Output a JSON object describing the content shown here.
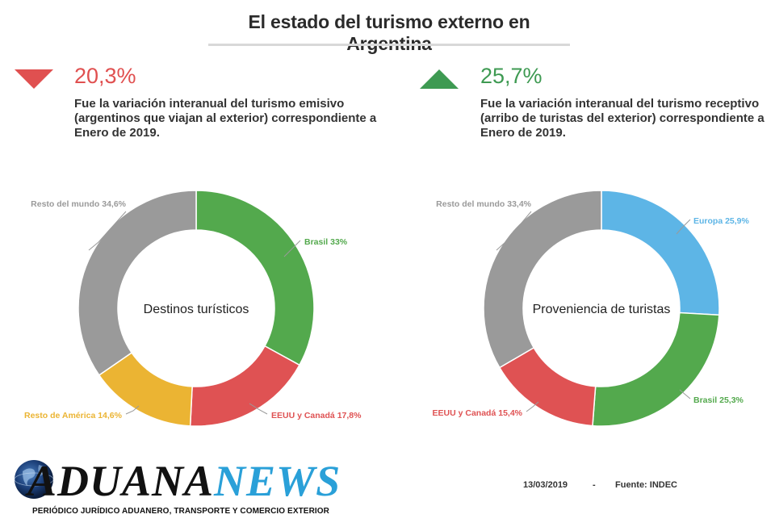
{
  "header": {
    "title": "El estado del turismo externo en Argentina"
  },
  "stats": [
    {
      "value": "20,3%",
      "direction": "down",
      "color": "#e05050",
      "description_lines": [
        "Fue la variación interanual del turismo emisivo",
        "(argentinos que viajan al exterior) correspondiente a",
        "Enero de 2019."
      ]
    },
    {
      "value": "25,7%",
      "direction": "up",
      "color": "#3e9a52",
      "description_lines": [
        "Fue la variación interanual del turismo receptivo",
        "(arribo de turistas del exterior) correspondiente a",
        "Enero de 2019."
      ]
    }
  ],
  "chart_data": [
    {
      "type": "pie",
      "title": "Destinos turísticos",
      "slices": [
        {
          "label": "Brasil 33%",
          "name": "Brasil",
          "value": 33,
          "color": "#53a94d"
        },
        {
          "label": "EEUU y Canadá 17,8%",
          "name": "EEUU y Canadá",
          "value": 17.8,
          "color": "#df5253"
        },
        {
          "label": "Resto de América 14,6%",
          "name": "Resto de América",
          "value": 14.6,
          "color": "#ebb433"
        },
        {
          "label": "Resto del mundo 34,6%",
          "name": "Resto del mundo",
          "value": 34.6,
          "color": "#9a9a9a"
        }
      ]
    },
    {
      "type": "pie",
      "title": "Proveniencia de turistas",
      "slices": [
        {
          "label": "Europa 25,9%",
          "name": "Europa",
          "value": 25.9,
          "color": "#5db5e6"
        },
        {
          "label": "Brasil 25,3%",
          "name": "Brasil",
          "value": 25.3,
          "color": "#53a94d"
        },
        {
          "label": "EEUU y Canadá 15,4%",
          "name": "EEUU y Canadá",
          "value": 15.4,
          "color": "#df5253"
        },
        {
          "label": "Resto del mundo 33,4%",
          "name": "Resto del mundo",
          "value": 33.4,
          "color": "#9a9a9a"
        }
      ]
    }
  ],
  "footer": {
    "date": "13/03/2019",
    "separator": "-",
    "source": "Fuente: INDEC"
  },
  "logo": {
    "letters_dark": "ADUANA",
    "letters_blue": "NEWS",
    "tagline": "PERIÓDICO JURÍDICO ADUANERO, TRANSPORTE Y COMERCIO EXTERIOR"
  }
}
